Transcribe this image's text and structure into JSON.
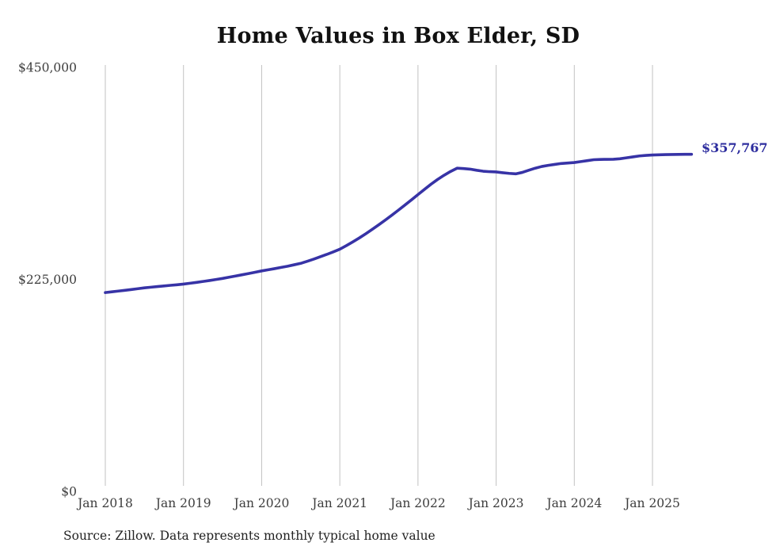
{
  "title": "Home Values in Box Elder, SD",
  "source_note": "Source: Zillow. Data represents monthly typical home value",
  "final_value_label": "$357,767",
  "colors": {
    "line": "#3733a6",
    "final_label": "#2d2d9e",
    "grid": "#c2c2c2",
    "title_text": "#111111",
    "axis_text": "#3d3d3d",
    "background": "#ffffff"
  },
  "chart_data": {
    "type": "line",
    "title": "Home Values in Box Elder, SD",
    "xlabel": "",
    "ylabel": "",
    "x_tick_labels": [
      "Jan 2018",
      "Jan 2019",
      "Jan 2020",
      "Jan 2021",
      "Jan 2022",
      "Jan 2023",
      "Jan 2024",
      "Jan 2025"
    ],
    "y_ticks": [
      0,
      225000,
      450000
    ],
    "y_tick_labels": [
      "$0",
      "$225,000",
      "$450,000"
    ],
    "ylim": [
      0,
      450000
    ],
    "grid": "vertical-only",
    "legend": "none",
    "frequency": "monthly",
    "x_start_month": "2018-01",
    "x_end_month": "2025-07",
    "final_value": 357767,
    "series": [
      {
        "name": "Typical home value",
        "values": [
          211000,
          211800,
          212600,
          213400,
          214200,
          215100,
          216000,
          216700,
          217400,
          218000,
          218700,
          219300,
          220000,
          220900,
          221800,
          222800,
          223800,
          224900,
          226000,
          227300,
          228600,
          229900,
          231200,
          232600,
          234000,
          235200,
          236400,
          237700,
          239000,
          240500,
          242000,
          244200,
          246500,
          249000,
          251500,
          254200,
          257000,
          260800,
          264800,
          269000,
          273500,
          278200,
          283000,
          288000,
          293200,
          298500,
          303900,
          309400,
          315000,
          320500,
          326000,
          331000,
          335500,
          339500,
          343000,
          342600,
          342000,
          340800,
          339800,
          339300,
          339000,
          338200,
          337500,
          337000,
          338500,
          340800,
          343000,
          344800,
          346000,
          347000,
          348000,
          348500,
          349000,
          350000,
          351000,
          352000,
          352300,
          352400,
          352500,
          353000,
          354000,
          355000,
          356000,
          356600,
          357000,
          357200,
          357400,
          357500,
          357600,
          357700,
          357767
        ]
      }
    ]
  }
}
